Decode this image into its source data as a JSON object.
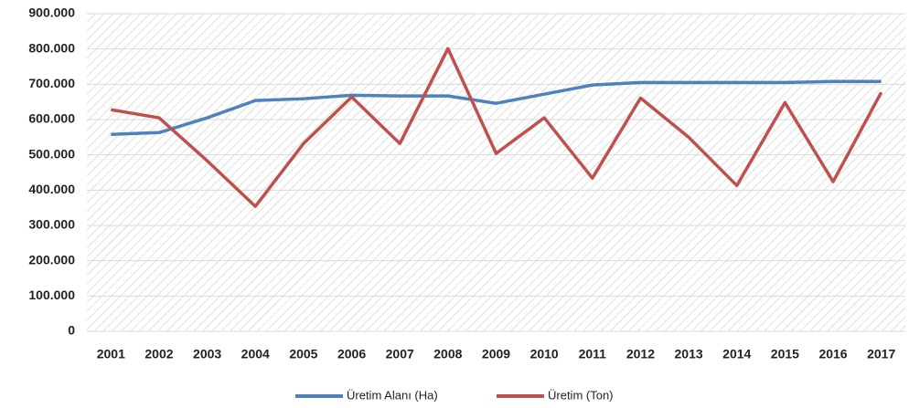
{
  "chart_data": {
    "type": "line",
    "categories": [
      "2001",
      "2002",
      "2003",
      "2004",
      "2005",
      "2006",
      "2007",
      "2008",
      "2009",
      "2010",
      "2011",
      "2012",
      "2013",
      "2014",
      "2015",
      "2016",
      "2017"
    ],
    "series": [
      {
        "name": "Üretim Alanı  (Ha)",
        "color": "#4f81bd",
        "values": [
          558000,
          563000,
          605000,
          654000,
          659000,
          669000,
          667000,
          667000,
          646000,
          672000,
          698000,
          705000,
          705000,
          705000,
          705000,
          708000,
          708000
        ]
      },
      {
        "name": "Üretim (Ton)",
        "color": "#c0504d",
        "values": [
          628000,
          605000,
          483000,
          354000,
          532000,
          664000,
          532000,
          801000,
          504000,
          605000,
          434000,
          661000,
          550000,
          413000,
          648000,
          424000,
          677000
        ]
      }
    ],
    "ylim": [
      0,
      900000
    ],
    "yticks": [
      0,
      {
        "value": 100000,
        "label": "100.000"
      },
      {
        "value": 200000,
        "label": "200.000"
      },
      {
        "value": 300000,
        "label": "300.000"
      },
      {
        "value": 400000,
        "label": "400.000"
      },
      {
        "value": 500000,
        "label": "500.000"
      },
      {
        "value": 600000,
        "label": "600.000"
      },
      {
        "value": 700000,
        "label": "700.000"
      },
      {
        "value": 800000,
        "label": "800.000"
      },
      {
        "value": 900000,
        "label": "900.000"
      }
    ],
    "grid": true,
    "legend": "bottom"
  }
}
